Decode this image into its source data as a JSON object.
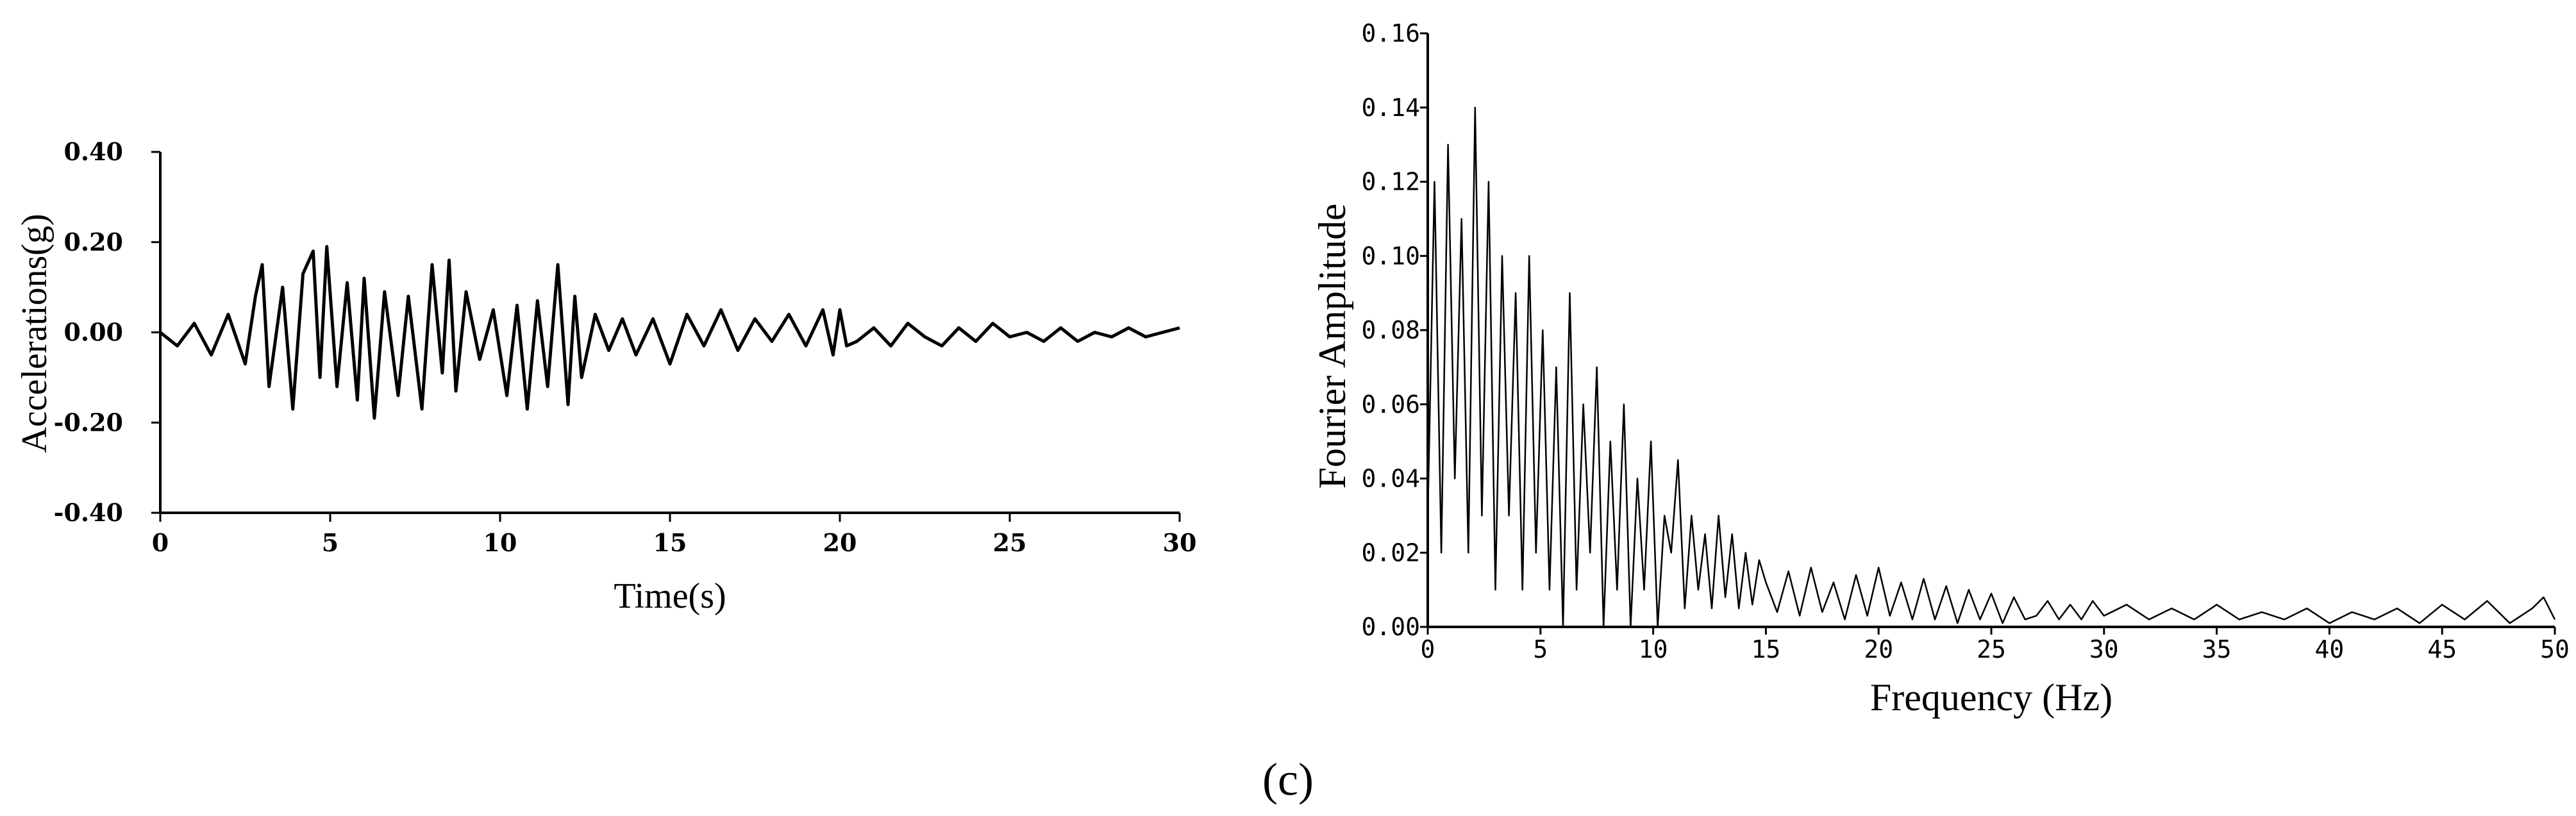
{
  "caption": "(c)",
  "chart_data": [
    {
      "type": "line",
      "title": "",
      "xlabel": "Time(s)",
      "ylabel": "Accelerations(g)",
      "xlim": [
        0,
        30
      ],
      "ylim": [
        -0.4,
        0.4
      ],
      "xticks": [
        "0",
        "5",
        "10",
        "15",
        "20",
        "25",
        "30"
      ],
      "yticks": [
        "-0.40",
        "-0.20",
        "0.00",
        "0.20",
        "0.40"
      ],
      "grid": false,
      "color": "#000000",
      "series": [
        {
          "x": [
            0.0,
            0.5,
            1.0,
            1.5,
            2.0,
            2.5,
            2.8,
            3.0,
            3.2,
            3.6,
            3.9,
            4.2,
            4.5,
            4.7,
            4.9,
            5.2,
            5.5,
            5.8,
            6.0,
            6.3,
            6.6,
            7.0,
            7.3,
            7.7,
            8.0,
            8.3,
            8.5,
            8.7,
            9.0,
            9.4,
            9.8,
            10.2,
            10.5,
            10.8,
            11.1,
            11.4,
            11.7,
            12.0,
            12.2,
            12.4,
            12.8,
            13.2,
            13.6,
            14.0,
            14.5,
            15.0,
            15.5,
            16.0,
            16.5,
            17.0,
            17.5,
            18.0,
            18.5,
            19.0,
            19.5,
            19.8,
            20.0,
            20.2,
            20.5,
            21.0,
            21.5,
            22.0,
            22.5,
            23.0,
            23.5,
            24.0,
            24.5,
            25.0,
            25.5,
            26.0,
            26.5,
            27.0,
            27.5,
            28.0,
            28.5,
            29.0,
            29.5,
            30.0
          ],
          "values": [
            0.0,
            -0.03,
            0.02,
            -0.05,
            0.04,
            -0.07,
            0.08,
            0.15,
            -0.12,
            0.1,
            -0.17,
            0.13,
            0.18,
            -0.1,
            0.19,
            -0.12,
            0.11,
            -0.15,
            0.12,
            -0.19,
            0.09,
            -0.14,
            0.08,
            -0.17,
            0.15,
            -0.09,
            0.16,
            -0.13,
            0.09,
            -0.06,
            0.05,
            -0.14,
            0.06,
            -0.17,
            0.07,
            -0.12,
            0.15,
            -0.16,
            0.08,
            -0.1,
            0.04,
            -0.04,
            0.03,
            -0.05,
            0.03,
            -0.07,
            0.04,
            -0.03,
            0.05,
            -0.04,
            0.03,
            -0.02,
            0.04,
            -0.03,
            0.05,
            -0.05,
            0.05,
            -0.03,
            -0.02,
            0.01,
            -0.03,
            0.02,
            -0.01,
            -0.03,
            0.01,
            -0.02,
            0.02,
            -0.01,
            0.0,
            -0.02,
            0.01,
            -0.02,
            0.0,
            -0.01,
            0.01,
            -0.01,
            0.0,
            0.01
          ]
        }
      ]
    },
    {
      "type": "line",
      "title": "",
      "xlabel": "Frequency (Hz)",
      "ylabel": "Fourier Amplitude",
      "xlim": [
        0,
        50
      ],
      "ylim": [
        0,
        0.16
      ],
      "xticks": [
        "0",
        "5",
        "10",
        "15",
        "20",
        "25",
        "30",
        "35",
        "40",
        "45",
        "50"
      ],
      "yticks": [
        "0.00",
        "0.02",
        "0.04",
        "0.06",
        "0.08",
        "0.10",
        "0.12",
        "0.14",
        "0.16"
      ],
      "grid": false,
      "color": "#000000",
      "series": [
        {
          "x": [
            0.0,
            0.3,
            0.6,
            0.9,
            1.2,
            1.5,
            1.8,
            2.1,
            2.4,
            2.7,
            3.0,
            3.3,
            3.6,
            3.9,
            4.2,
            4.5,
            4.8,
            5.1,
            5.4,
            5.7,
            6.0,
            6.3,
            6.6,
            6.9,
            7.2,
            7.5,
            7.8,
            8.1,
            8.4,
            8.7,
            9.0,
            9.3,
            9.6,
            9.9,
            10.2,
            10.5,
            10.8,
            11.1,
            11.4,
            11.7,
            12.0,
            12.3,
            12.6,
            12.9,
            13.2,
            13.5,
            13.8,
            14.1,
            14.4,
            14.7,
            15.0,
            15.5,
            16.0,
            16.5,
            17.0,
            17.5,
            18.0,
            18.5,
            19.0,
            19.5,
            20.0,
            20.5,
            21.0,
            21.5,
            22.0,
            22.5,
            23.0,
            23.5,
            24.0,
            24.5,
            25.0,
            25.5,
            26.0,
            26.5,
            27.0,
            27.5,
            28.0,
            28.5,
            29.0,
            29.5,
            30.0,
            31.0,
            32.0,
            33.0,
            34.0,
            35.0,
            36.0,
            37.0,
            38.0,
            39.0,
            40.0,
            41.0,
            42.0,
            43.0,
            44.0,
            45.0,
            46.0,
            47.0,
            48.0,
            49.0,
            49.5,
            50.0
          ],
          "values": [
            0.03,
            0.12,
            0.02,
            0.13,
            0.04,
            0.11,
            0.02,
            0.14,
            0.03,
            0.12,
            0.01,
            0.1,
            0.03,
            0.09,
            0.01,
            0.1,
            0.02,
            0.08,
            0.01,
            0.07,
            0.0,
            0.09,
            0.01,
            0.06,
            0.02,
            0.07,
            0.0,
            0.05,
            0.01,
            0.06,
            0.0,
            0.04,
            0.01,
            0.05,
            0.0,
            0.03,
            0.02,
            0.045,
            0.005,
            0.03,
            0.01,
            0.025,
            0.005,
            0.03,
            0.008,
            0.025,
            0.005,
            0.02,
            0.006,
            0.018,
            0.012,
            0.004,
            0.015,
            0.003,
            0.016,
            0.004,
            0.012,
            0.002,
            0.014,
            0.003,
            0.016,
            0.003,
            0.012,
            0.002,
            0.013,
            0.002,
            0.011,
            0.001,
            0.01,
            0.002,
            0.009,
            0.001,
            0.008,
            0.002,
            0.003,
            0.007,
            0.002,
            0.006,
            0.002,
            0.007,
            0.003,
            0.006,
            0.002,
            0.005,
            0.002,
            0.006,
            0.002,
            0.004,
            0.002,
            0.005,
            0.001,
            0.004,
            0.002,
            0.005,
            0.001,
            0.006,
            0.002,
            0.007,
            0.001,
            0.005,
            0.008,
            0.002
          ]
        }
      ]
    }
  ]
}
